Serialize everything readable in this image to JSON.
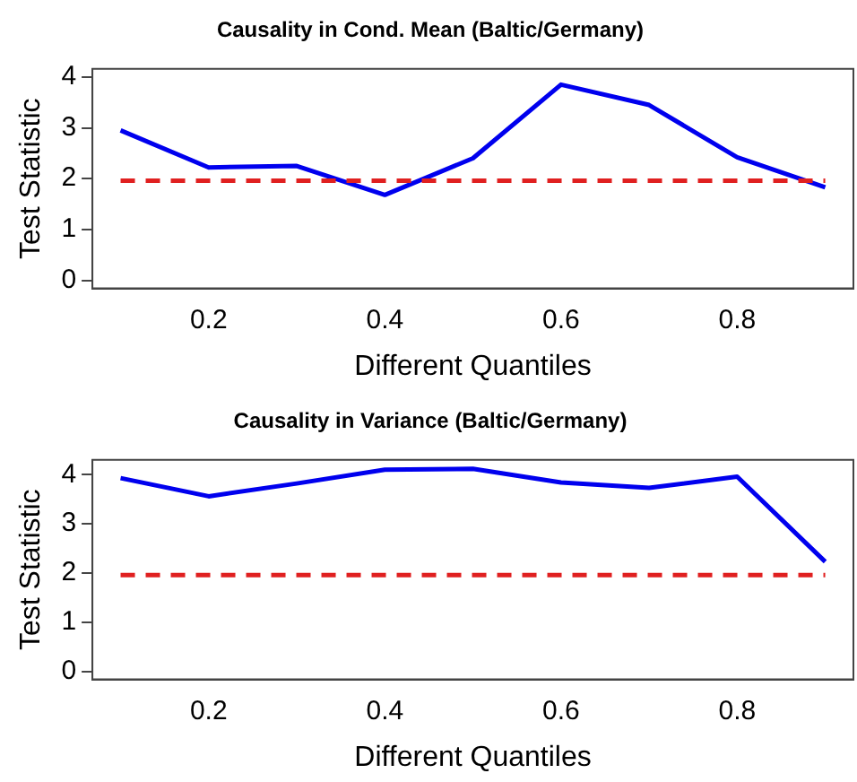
{
  "chart_data": [
    {
      "type": "line",
      "title": "Causality in Cond. Mean (Baltic/Germany)",
      "xlabel": "Different Quantiles",
      "ylabel": "Test Statistic",
      "x": [
        0.1,
        0.2,
        0.3,
        0.4,
        0.5,
        0.6,
        0.7,
        0.8,
        0.9
      ],
      "series": [
        {
          "color": "#0000ee",
          "values": [
            2.95,
            2.22,
            2.25,
            1.68,
            2.4,
            3.85,
            3.45,
            2.42,
            1.83
          ]
        }
      ],
      "xlim": [
        0.068,
        0.932
      ],
      "xticks": [
        0.2,
        0.4,
        0.6,
        0.8
      ],
      "ylim": [
        -0.16,
        4.16
      ],
      "yticks": [
        0,
        1,
        2,
        3,
        4
      ],
      "ref_lines": [
        {
          "axis": "y",
          "value": 1.96,
          "color": "#e02020",
          "line_style": "dashed"
        }
      ],
      "legend": false,
      "grid": false,
      "marker": "none"
    },
    {
      "type": "line",
      "title": "Causality in Variance (Baltic/Germany)",
      "xlabel": "Different Quantiles",
      "ylabel": "Test Statistic",
      "x": [
        0.1,
        0.2,
        0.3,
        0.4,
        0.5,
        0.6,
        0.7,
        0.8,
        0.9
      ],
      "series": [
        {
          "color": "#0000ee",
          "values": [
            3.93,
            3.56,
            3.82,
            4.1,
            4.12,
            3.84,
            3.73,
            3.96,
            2.23
          ]
        }
      ],
      "xlim": [
        0.068,
        0.932
      ],
      "xticks": [
        0.2,
        0.4,
        0.6,
        0.8
      ],
      "ylim": [
        -0.16,
        4.3
      ],
      "yticks": [
        0,
        1,
        2,
        3,
        4
      ],
      "ref_lines": [
        {
          "axis": "y",
          "value": 1.96,
          "color": "#e02020",
          "line_style": "dashed"
        }
      ],
      "legend": false,
      "grid": false,
      "marker": "none"
    }
  ]
}
